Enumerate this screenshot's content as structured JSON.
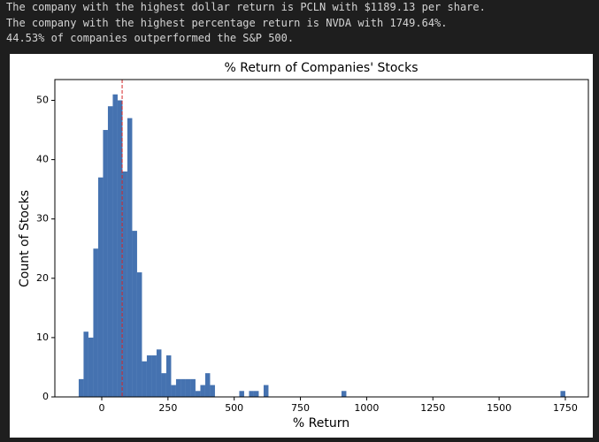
{
  "output_lines": [
    "The company with the highest dollar return is PCLN with $1189.13 per share.",
    "The company with the highest percentage return is NVDA with 1749.64%.",
    "44.53% of companies outperformed the S&P 500."
  ],
  "chart_data": {
    "type": "histogram",
    "title": "% Return of Companies' Stocks",
    "x_label": "% Return",
    "y_label": "Count of Stocks",
    "color": "#4572b0",
    "bins": [
      -87,
      -68.63,
      -50.26,
      -31.89,
      -13.52,
      4.85,
      23.22,
      41.59,
      59.96,
      78.33,
      96.7,
      115.07,
      133.44,
      151.81,
      170.18,
      188.55,
      206.92,
      225.29,
      243.66,
      262.03,
      280.4,
      298.77,
      317.14,
      335.51,
      353.88,
      372.25,
      390.62,
      408.99,
      427.36,
      445.73,
      464.1,
      482.47,
      500.84,
      519.21,
      537.58,
      555.95,
      574.32,
      592.69,
      611.06,
      629.43,
      647.8,
      666.17,
      684.54,
      702.91,
      721.28,
      739.65,
      758.02,
      776.39,
      794.76,
      813.13,
      831.5,
      849.87,
      868.24,
      886.61,
      904.98,
      923.35,
      941.72,
      960.09,
      978.46,
      996.83,
      1015.2,
      1033.57,
      1051.94,
      1070.31,
      1088.68,
      1107.05,
      1125.42,
      1143.79,
      1162.16,
      1180.53,
      1198.9,
      1217.27,
      1235.64,
      1254.01,
      1272.38,
      1290.75,
      1309.12,
      1327.49,
      1345.86,
      1364.23,
      1382.6,
      1400.97,
      1419.34,
      1437.71,
      1456.08,
      1474.45,
      1492.82,
      1511.19,
      1529.56,
      1547.93,
      1566.3,
      1584.67,
      1603.04,
      1621.41,
      1639.78,
      1658.15,
      1676.52,
      1694.89,
      1713.26,
      1731.63,
      1750
    ],
    "values": [
      3,
      11,
      10,
      25,
      37,
      45,
      49,
      51,
      50,
      38,
      47,
      28,
      21,
      6,
      7,
      7,
      8,
      4,
      7,
      2,
      3,
      3,
      3,
      3,
      1,
      2,
      4,
      2,
      0,
      0,
      0,
      0,
      0,
      1,
      0,
      1,
      1,
      0,
      2,
      0,
      0,
      0,
      0,
      0,
      0,
      0,
      0,
      0,
      0,
      0,
      0,
      0,
      0,
      0,
      1,
      0,
      0,
      0,
      0,
      0,
      0,
      0,
      0,
      0,
      0,
      0,
      0,
      0,
      0,
      0,
      0,
      0,
      0,
      0,
      0,
      0,
      0,
      0,
      0,
      0,
      0,
      0,
      0,
      0,
      0,
      0,
      0,
      0,
      0,
      0,
      0,
      0,
      0,
      0,
      0,
      0,
      0,
      0,
      0,
      1
    ],
    "reference_line": {
      "x": 77,
      "color": "#d62728"
    },
    "xlim": [
      -177,
      1837
    ],
    "ylim": [
      0,
      53.5
    ],
    "xticks": [
      0,
      250,
      500,
      750,
      1000,
      1250,
      1500,
      1750
    ],
    "yticks": [
      0,
      10,
      20,
      30,
      40,
      50
    ]
  }
}
